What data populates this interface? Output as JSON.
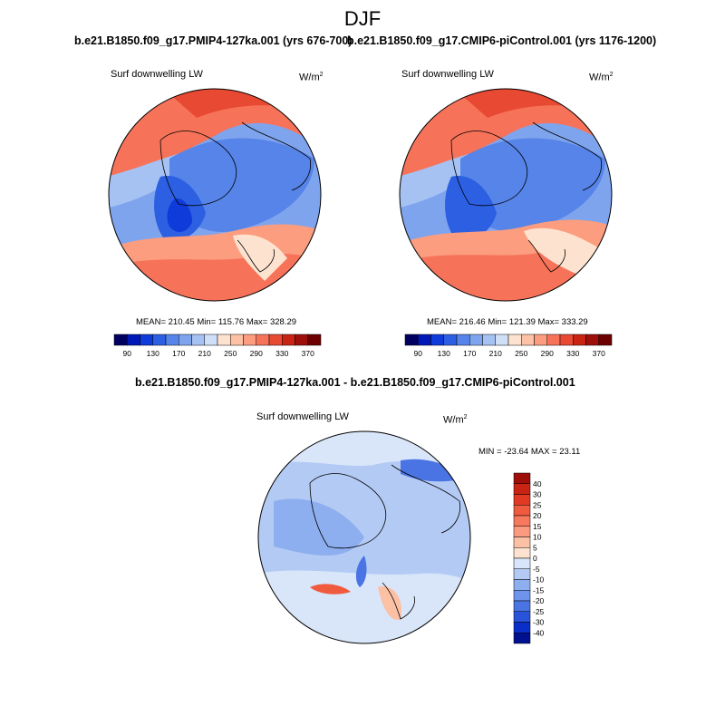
{
  "main_title": "DJF",
  "colors": {
    "palette": [
      "#02005f",
      "#0019b6",
      "#0e3bd9",
      "#2c5fe2",
      "#5684e8",
      "#7fa4ee",
      "#a6c2f3",
      "#cfdff8",
      "#fde3cf",
      "#fdc2a5",
      "#fb9d7e",
      "#f6735a",
      "#e84933",
      "#c92413",
      "#9e0f0a",
      "#6c0000"
    ],
    "ocean_blue": "#6f95e9",
    "ocean_red": "#f07c5a",
    "coast": "#000000"
  },
  "chart_data": [
    {
      "type": "heatmap",
      "projection": "polar-stereographic",
      "title": "b.e21.B1850.f09_g17.PMIP4-127ka.001 (yrs 676-700)",
      "left_label": "Surf downwelling LW",
      "units_base": "W/m",
      "units_exp": "2",
      "stats": {
        "mean": "210.45",
        "min": "115.76",
        "max": "328.29"
      },
      "stats_text": "MEAN= 210.45  Min= 115.76  Max= 328.29",
      "colorbar": {
        "orientation": "horizontal",
        "levels": [
          90,
          110,
          130,
          150,
          170,
          190,
          210,
          230,
          250,
          270,
          290,
          310,
          330,
          350,
          370
        ],
        "tick_labels": [
          "90",
          "130",
          "170",
          "210",
          "250",
          "290",
          "330",
          "370"
        ]
      }
    },
    {
      "type": "heatmap",
      "projection": "polar-stereographic",
      "title": "b.e21.B1850.f09_g17.CMIP6-piControl.001 (yrs 1176-1200)",
      "left_label": "Surf downwelling LW",
      "units_base": "W/m",
      "units_exp": "2",
      "stats": {
        "mean": "216.46",
        "min": "121.39",
        "max": "333.29"
      },
      "stats_text": "MEAN= 216.46  Min= 121.39  Max= 333.29",
      "colorbar": {
        "orientation": "horizontal",
        "levels": [
          90,
          110,
          130,
          150,
          170,
          190,
          210,
          230,
          250,
          270,
          290,
          310,
          330,
          350,
          370
        ],
        "tick_labels": [
          "90",
          "130",
          "170",
          "210",
          "250",
          "290",
          "330",
          "370"
        ]
      }
    },
    {
      "type": "heatmap",
      "projection": "polar-stereographic",
      "title": "b.e21.B1850.f09_g17.PMIP4-127ka.001 - b.e21.B1850.f09_g17.CMIP6-piControl.001",
      "left_label": "Surf downwelling LW",
      "units_base": "W/m",
      "units_exp": "2",
      "stats": {
        "min": "-23.64",
        "max": "23.11"
      },
      "stats_text": "MIN = -23.64 MAX =  23.11",
      "colorbar": {
        "orientation": "vertical",
        "levels": [
          40,
          30,
          25,
          20,
          15,
          10,
          5,
          0,
          -5,
          -10,
          -15,
          -20,
          -25,
          -30,
          -40
        ],
        "tick_labels": [
          "40",
          "30",
          "25",
          "20",
          "15",
          "10",
          "5",
          "0",
          "-5",
          "-10",
          "-15",
          "-20",
          "-25",
          "-30",
          "-40"
        ],
        "colors": [
          "#9e0f0a",
          "#c92413",
          "#e03a24",
          "#f05a3e",
          "#f6795d",
          "#fa9b80",
          "#fcc0a5",
          "#fde3cf",
          "#d9e6f9",
          "#b3cbf4",
          "#8daeef",
          "#6d93ea",
          "#4a74e3",
          "#2a53dc",
          "#0a2fc9",
          "#00118f"
        ]
      }
    }
  ]
}
